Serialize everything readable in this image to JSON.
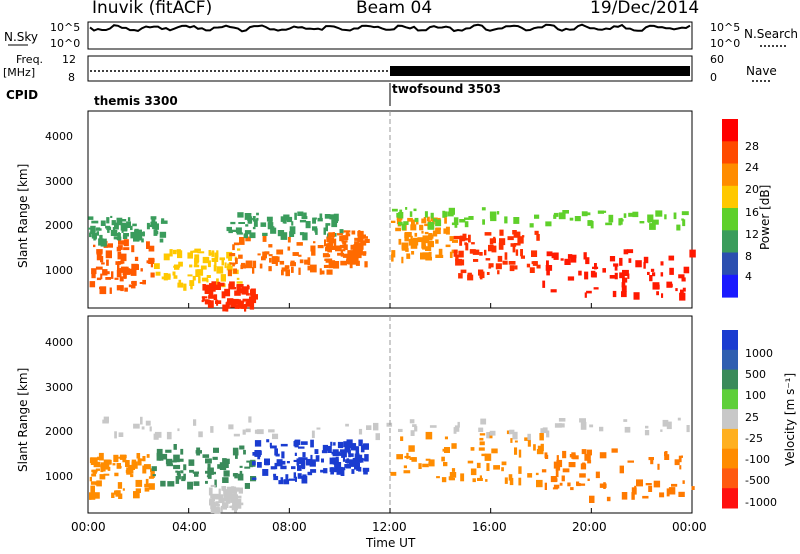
{
  "header": {
    "station": "Inuvik (fitACF)",
    "beam": "Beam 04",
    "date": "19/Dec/2014"
  },
  "panels": {
    "nsky_label": "N.Sky",
    "nsearch_label": "N.Search",
    "nsky_ticks": [
      "10^5",
      "10^0"
    ],
    "nsearch_ticks": [
      "10^5",
      "10^0"
    ],
    "freq_label_1": "Freq.",
    "freq_label_2": "[MHz]",
    "freq_ticks": [
      "12",
      "8"
    ],
    "nave_label": "Nave",
    "nave_ticks": [
      "60",
      "0"
    ],
    "cpid_label": "CPID",
    "cpid_segments": [
      {
        "label": "themis 3300",
        "start_hour": 0,
        "end_hour": 12
      },
      {
        "label": "twofsound 3503",
        "start_hour": 12,
        "end_hour": 24
      }
    ]
  },
  "chart_data": [
    {
      "type": "heatmap",
      "title": "",
      "ylabel": "Slant Range [km]",
      "xlabel": "",
      "yticks": [
        "1000",
        "2000",
        "3000",
        "4000"
      ],
      "ylim": [
        180,
        4500
      ],
      "xlim": [
        0,
        24
      ],
      "colorbar": {
        "label": "Power [dB]",
        "ticks": [
          "28",
          "24",
          "20",
          "16",
          "12",
          "8",
          "4"
        ],
        "colors": [
          "#ff0000",
          "#ff4a00",
          "#ff8c00",
          "#ffc800",
          "#5fd02a",
          "#3a9c5c",
          "#2b4fb0",
          "#1a1aff"
        ]
      }
    },
    {
      "type": "heatmap",
      "title": "",
      "ylabel": "Slant Range [km]",
      "xlabel": "Time UT",
      "yticks": [
        "1000",
        "2000",
        "3000",
        "4000"
      ],
      "xticks": [
        "00:00",
        "04:00",
        "08:00",
        "12:00",
        "16:00",
        "20:00",
        "00:00"
      ],
      "ylim": [
        180,
        4500
      ],
      "xlim": [
        0,
        24
      ],
      "colorbar": {
        "label": "Velocity [m s⁻¹]",
        "ticks": [
          "1000",
          "500",
          "100",
          "25",
          "-25",
          "-100",
          "-500",
          "-1000"
        ],
        "colors": [
          "#1a3cd0",
          "#2f5fb0",
          "#3a8a5a",
          "#5fcf3a",
          "#c8c8c8",
          "#ffb020",
          "#ff8c00",
          "#ff5a10",
          "#ff1010"
        ]
      }
    }
  ],
  "regions": [
    {
      "panel": 0,
      "t0": 0.0,
      "t1": 2.6,
      "r0": 600,
      "r1": 1700,
      "c": "#ff5a00"
    },
    {
      "panel": 0,
      "t0": 0.0,
      "t1": 3.0,
      "r0": 1700,
      "r1": 2200,
      "c": "#3a9c5c"
    },
    {
      "panel": 0,
      "t0": 2.6,
      "t1": 6.0,
      "r0": 700,
      "r1": 1500,
      "c": "#ffc800"
    },
    {
      "panel": 0,
      "t0": 4.5,
      "t1": 6.5,
      "r0": 250,
      "r1": 800,
      "c": "#ff2a00"
    },
    {
      "panel": 0,
      "t0": 5.5,
      "t1": 9.5,
      "r0": 1000,
      "r1": 1800,
      "c": "#ff6a00"
    },
    {
      "panel": 0,
      "t0": 5.5,
      "t1": 10.0,
      "r0": 1800,
      "r1": 2300,
      "c": "#3a9c5c"
    },
    {
      "panel": 0,
      "t0": 9.5,
      "t1": 11.0,
      "r0": 1200,
      "r1": 1900,
      "c": "#ff6a00"
    },
    {
      "panel": 0,
      "t0": 12.0,
      "t1": 14.5,
      "r0": 1300,
      "r1": 2200,
      "c": "#ff8c00"
    },
    {
      "panel": 0,
      "t0": 14.5,
      "t1": 18.0,
      "r0": 900,
      "r1": 1900,
      "c": "#ff3000"
    },
    {
      "panel": 0,
      "t0": 18.0,
      "t1": 24.0,
      "r0": 450,
      "r1": 1500,
      "c": "#ff1800"
    },
    {
      "panel": 0,
      "t0": 12.0,
      "t1": 24.0,
      "r0": 2000,
      "r1": 2400,
      "c": "#5fd02a"
    },
    {
      "panel": 1,
      "t0": 0.0,
      "t1": 2.5,
      "r0": 600,
      "r1": 1500,
      "c": "#ff8c00"
    },
    {
      "panel": 1,
      "t0": 2.5,
      "t1": 6.5,
      "r0": 800,
      "r1": 1700,
      "c": "#3a8a5a"
    },
    {
      "panel": 1,
      "t0": 4.8,
      "t1": 6.0,
      "r0": 300,
      "r1": 800,
      "c": "#c8c8c8"
    },
    {
      "panel": 1,
      "t0": 6.5,
      "t1": 9.5,
      "r0": 900,
      "r1": 1800,
      "c": "#1a3cd0"
    },
    {
      "panel": 1,
      "t0": 9.5,
      "t1": 11.0,
      "r0": 1100,
      "r1": 1800,
      "c": "#1a3cd0"
    },
    {
      "panel": 1,
      "t0": 12.0,
      "t1": 18.0,
      "r0": 900,
      "r1": 2000,
      "c": "#ff8c00"
    },
    {
      "panel": 1,
      "t0": 18.0,
      "t1": 24.0,
      "r0": 500,
      "r1": 1600,
      "c": "#ff7a00"
    },
    {
      "panel": 1,
      "t0": 0.0,
      "t1": 24.0,
      "r0": 1900,
      "r1": 2300,
      "c": "#c8c8c8"
    }
  ]
}
